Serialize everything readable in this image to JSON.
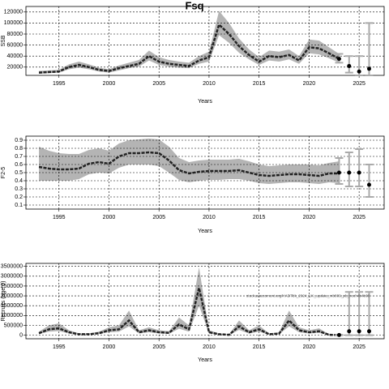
{
  "chart_data": [
    {
      "type": "line",
      "title": "Fsq",
      "xlabel": "Years",
      "ylabel": "SSB",
      "x": [
        1993,
        1994,
        1995,
        1996,
        1997,
        1998,
        1999,
        2000,
        2001,
        2002,
        2003,
        2004,
        2005,
        2006,
        2007,
        2008,
        2009,
        2010,
        2011,
        2012,
        2013,
        2014,
        2015,
        2016,
        2017,
        2018,
        2019,
        2020,
        2021,
        2022,
        2023
      ],
      "values": [
        10000,
        11000,
        12000,
        20000,
        24000,
        20000,
        15000,
        13000,
        18000,
        22000,
        26000,
        40000,
        30000,
        26000,
        24000,
        22000,
        32000,
        38000,
        97000,
        80000,
        58000,
        42000,
        30000,
        40000,
        38000,
        42000,
        32000,
        56000,
        54000,
        45000,
        35000
      ],
      "lower": [
        8000,
        9000,
        10000,
        16000,
        19000,
        16000,
        12000,
        10000,
        14000,
        18000,
        21000,
        32000,
        24000,
        21000,
        19000,
        18000,
        26000,
        30000,
        78000,
        64000,
        46000,
        34000,
        24000,
        32000,
        30000,
        34000,
        26000,
        45000,
        43000,
        36000,
        28000
      ],
      "upper": [
        13000,
        14000,
        15000,
        25000,
        30000,
        25000,
        19000,
        16000,
        23000,
        28000,
        33000,
        50000,
        38000,
        33000,
        30000,
        28000,
        40000,
        48000,
        122000,
        100000,
        72000,
        52000,
        38000,
        50000,
        48000,
        52000,
        40000,
        70000,
        68000,
        56000,
        44000
      ],
      "projection": {
        "x": [
          2023,
          2024,
          2025,
          2026
        ],
        "values": [
          35000,
          22000,
          12000,
          17000
        ],
        "lower": [
          28000,
          10000,
          5000,
          5000
        ],
        "upper": [
          44000,
          40000,
          40000,
          100000
        ]
      },
      "xlim": [
        1991.7,
        2027.5
      ],
      "xticks": [
        1995,
        2000,
        2005,
        2010,
        2015,
        2020,
        2025
      ],
      "ylim": [
        5000,
        130000
      ],
      "yticks": [
        20000,
        40000,
        60000,
        80000,
        100000,
        120000
      ],
      "grid": true,
      "line_color": "#222222",
      "band_color": "#b4b4b4",
      "bar_color": "#aaaaaa"
    },
    {
      "type": "line",
      "xlabel": "Years",
      "ylabel": "F2-5",
      "x": [
        1993,
        1994,
        1995,
        1996,
        1997,
        1998,
        1999,
        2000,
        2001,
        2002,
        2003,
        2004,
        2005,
        2006,
        2007,
        2008,
        2009,
        2010,
        2011,
        2012,
        2013,
        2014,
        2015,
        2016,
        2017,
        2018,
        2019,
        2020,
        2021,
        2022,
        2023
      ],
      "values": [
        0.57,
        0.55,
        0.54,
        0.54,
        0.55,
        0.61,
        0.63,
        0.61,
        0.7,
        0.74,
        0.74,
        0.75,
        0.74,
        0.65,
        0.53,
        0.49,
        0.51,
        0.52,
        0.52,
        0.52,
        0.53,
        0.5,
        0.47,
        0.46,
        0.47,
        0.48,
        0.48,
        0.47,
        0.46,
        0.49,
        0.49
      ],
      "lower": [
        0.4,
        0.4,
        0.4,
        0.4,
        0.42,
        0.48,
        0.5,
        0.49,
        0.56,
        0.6,
        0.6,
        0.6,
        0.58,
        0.5,
        0.41,
        0.38,
        0.4,
        0.41,
        0.41,
        0.42,
        0.42,
        0.4,
        0.37,
        0.36,
        0.37,
        0.38,
        0.38,
        0.37,
        0.36,
        0.38,
        0.37
      ],
      "upper": [
        0.82,
        0.77,
        0.74,
        0.73,
        0.73,
        0.78,
        0.8,
        0.77,
        0.86,
        0.9,
        0.91,
        0.92,
        0.91,
        0.82,
        0.68,
        0.63,
        0.65,
        0.66,
        0.66,
        0.66,
        0.67,
        0.64,
        0.6,
        0.58,
        0.59,
        0.6,
        0.6,
        0.6,
        0.59,
        0.62,
        0.64
      ],
      "projection": {
        "x": [
          2023,
          2024,
          2025,
          2026
        ],
        "values": [
          0.5,
          0.5,
          0.5,
          0.35
        ],
        "lower": [
          0.36,
          0.33,
          0.33,
          0.2
        ],
        "upper": [
          0.68,
          0.75,
          0.79,
          0.6
        ]
      },
      "xlim": [
        1991.7,
        2027.5
      ],
      "xticks": [
        1995,
        2000,
        2005,
        2010,
        2015,
        2020,
        2025
      ],
      "ylim": [
        0.05,
        0.95
      ],
      "yticks": [
        0.1,
        0.2,
        0.3,
        0.4,
        0.5,
        0.6,
        0.7,
        0.8,
        0.9
      ],
      "grid": true,
      "line_color": "#222222",
      "band_color": "#b4b4b4",
      "bar_color": "#aaaaaa"
    },
    {
      "type": "line",
      "xlabel": "Years",
      "ylabel": "Recruits (age 0)",
      "annotation": "stockassessment.org/HADTbk_2024_UK_update_mb809_pb_noch4b4b08",
      "x": [
        1993,
        1994,
        1995,
        1996,
        1997,
        1998,
        1999,
        2000,
        2001,
        2002,
        2003,
        2004,
        2005,
        2006,
        2007,
        2008,
        2009,
        2010,
        2011,
        2012,
        2013,
        2014,
        2015,
        2016,
        2017,
        2018,
        2019,
        2020,
        2021,
        2022,
        2023
      ],
      "values": [
        100000,
        300000,
        350000,
        150000,
        50000,
        50000,
        100000,
        250000,
        300000,
        750000,
        150000,
        250000,
        150000,
        120000,
        550000,
        300000,
        2400000,
        150000,
        50000,
        20000,
        450000,
        150000,
        300000,
        50000,
        80000,
        750000,
        250000,
        150000,
        200000,
        20000,
        10000
      ],
      "lower": [
        60000,
        180000,
        210000,
        90000,
        30000,
        30000,
        60000,
        150000,
        180000,
        450000,
        90000,
        150000,
        90000,
        70000,
        330000,
        180000,
        1500000,
        90000,
        30000,
        10000,
        270000,
        90000,
        180000,
        30000,
        50000,
        450000,
        150000,
        90000,
        120000,
        10000,
        0
      ],
      "upper": [
        180000,
        500000,
        600000,
        250000,
        90000,
        90000,
        180000,
        400000,
        500000,
        1250000,
        250000,
        400000,
        250000,
        200000,
        900000,
        500000,
        3450000,
        250000,
        90000,
        40000,
        750000,
        250000,
        500000,
        90000,
        140000,
        1250000,
        400000,
        250000,
        350000,
        40000,
        20000
      ],
      "projection": {
        "x": [
          2023,
          2024,
          2025,
          2026
        ],
        "values": [
          10000,
          200000,
          200000,
          200000
        ],
        "lower": [
          0,
          0,
          0,
          0
        ],
        "upper": [
          20000,
          2200000,
          2200000,
          2200000
        ]
      },
      "xlim": [
        1991.7,
        2027.5
      ],
      "xticks": [
        1995,
        2000,
        2005,
        2010,
        2015,
        2020,
        2025
      ],
      "ylim": [
        -180000,
        3650000
      ],
      "yticks": [
        0,
        500000,
        1000000,
        1500000,
        2000000,
        2500000,
        3000000,
        3500000
      ],
      "grid": true,
      "line_color": "#222222",
      "band_color": "#b4b4b4",
      "bar_color": "#aaaaaa"
    }
  ]
}
